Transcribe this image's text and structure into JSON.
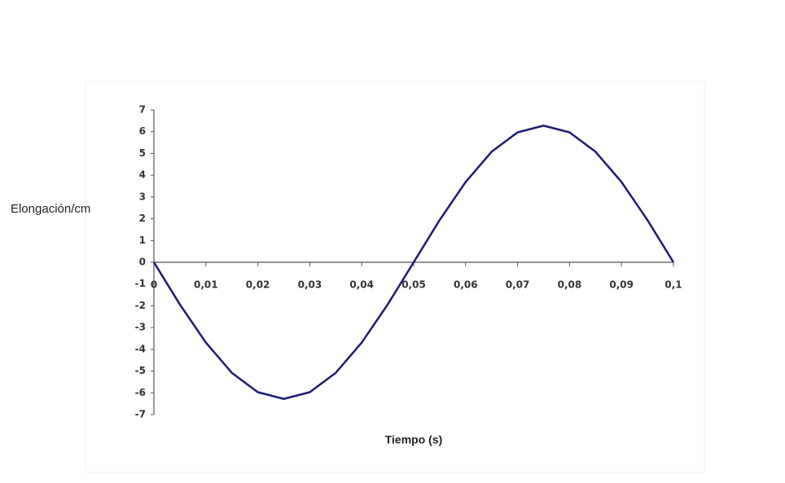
{
  "chart_data": {
    "type": "line",
    "x_label": "Tiempo (s)",
    "y_label": "Elongación/cm",
    "x": [
      0,
      0.005,
      0.01,
      0.015,
      0.02,
      0.025,
      0.03,
      0.035,
      0.04,
      0.045,
      0.05,
      0.055,
      0.06,
      0.065,
      0.07,
      0.075,
      0.08,
      0.085,
      0.09,
      0.095,
      0.1
    ],
    "series": [
      {
        "color": "#1c1c74",
        "values": [
          0,
          -1.94,
          -3.69,
          -5.08,
          -5.97,
          -6.28,
          -5.97,
          -5.08,
          -3.69,
          -1.94,
          0,
          1.94,
          3.69,
          5.08,
          5.97,
          6.28,
          5.97,
          5.08,
          3.69,
          1.94,
          0
        ]
      }
    ],
    "xlim": [
      0,
      0.1
    ],
    "xticks": [
      0,
      {
        "value": 0.01,
        "label": "0,01"
      },
      {
        "value": 0.02,
        "label": "0,02"
      },
      {
        "value": 0.03,
        "label": "0,03"
      },
      {
        "value": 0.04,
        "label": "0,04"
      },
      {
        "value": 0.05,
        "label": "0,05"
      },
      {
        "value": 0.06,
        "label": "0,06"
      },
      {
        "value": 0.07,
        "label": "0,07"
      },
      {
        "value": 0.08,
        "label": "0,08"
      },
      {
        "value": 0.09,
        "label": "0,09"
      },
      {
        "value": 0.1,
        "label": "0,1"
      }
    ],
    "ylim": [
      -7,
      7
    ],
    "yticks": [
      -7,
      -6,
      -5,
      -4,
      -3,
      -2,
      -1,
      0,
      1,
      2,
      3,
      4,
      5,
      6,
      7
    ]
  }
}
